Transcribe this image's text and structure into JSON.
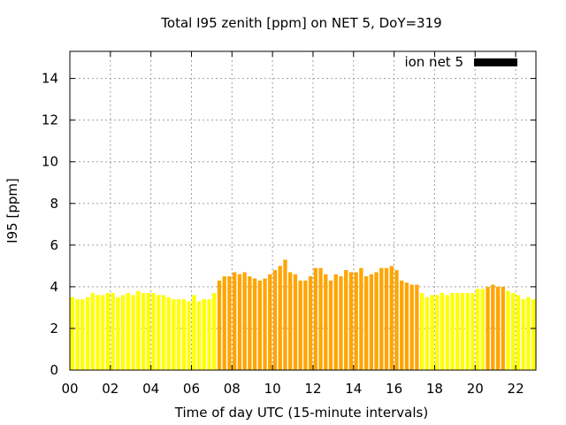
{
  "chart_data": {
    "type": "bar",
    "title": "Total I95 zenith [ppm] on NET 5, DoY=319",
    "xlabel": "Time of day UTC (15-minute intervals)",
    "ylabel": "I95 [ppm]",
    "legend": {
      "label": "ion net 5",
      "placement": "top-right",
      "color": "#000000"
    },
    "xlim": [
      0,
      23
    ],
    "ylim": [
      0,
      15.3
    ],
    "grid": true,
    "x_ticks": [
      "00",
      "02",
      "04",
      "06",
      "08",
      "10",
      "12",
      "14",
      "16",
      "18",
      "20",
      "22"
    ],
    "y_ticks": [
      "0",
      "2",
      "4",
      "6",
      "8",
      "10",
      "12",
      "14"
    ],
    "colors": {
      "low": "#ffff00",
      "high": "#ffa500",
      "threshold": 4.0
    },
    "bar_interval_hours": 0.25,
    "values": [
      3.5,
      3.4,
      3.4,
      3.5,
      3.7,
      3.6,
      3.6,
      3.7,
      3.7,
      3.5,
      3.6,
      3.7,
      3.6,
      3.8,
      3.7,
      3.7,
      3.7,
      3.6,
      3.6,
      3.5,
      3.4,
      3.4,
      3.4,
      3.3,
      3.6,
      3.3,
      3.4,
      3.4,
      3.7,
      4.3,
      4.5,
      4.5,
      4.7,
      4.6,
      4.7,
      4.5,
      4.4,
      4.3,
      4.4,
      4.6,
      4.8,
      5.0,
      5.3,
      4.7,
      4.6,
      4.3,
      4.3,
      4.5,
      4.9,
      4.9,
      4.6,
      4.3,
      4.6,
      4.5,
      4.8,
      4.7,
      4.7,
      4.9,
      4.5,
      4.6,
      4.7,
      4.9,
      4.9,
      5.0,
      4.8,
      4.3,
      4.2,
      4.1,
      4.1,
      3.7,
      3.5,
      3.6,
      3.6,
      3.7,
      3.6,
      3.7,
      3.7,
      3.7,
      3.7,
      3.7,
      3.9,
      3.9,
      4.0,
      4.1,
      4.0,
      4.0,
      3.8,
      3.7,
      3.6,
      3.4,
      3.5,
      3.4
    ]
  }
}
